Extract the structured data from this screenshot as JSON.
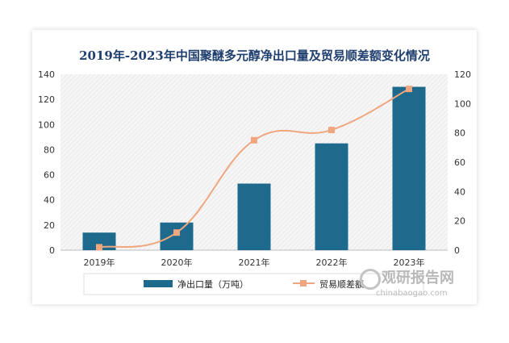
{
  "chart_data": {
    "type": "bar",
    "title": "2019年-2023年中国聚醚多元醇净出口量及贸易顺差额变化情况",
    "categories": [
      "2019年",
      "2020年",
      "2021年",
      "2022年",
      "2023年"
    ],
    "series": [
      {
        "name": "净出口量（万吨）",
        "type": "bar",
        "axis": "left",
        "values": [
          14,
          22,
          53,
          85,
          130
        ]
      },
      {
        "name": "贸易顺差额",
        "type": "line",
        "axis": "right",
        "values": [
          2,
          12,
          75,
          82,
          110
        ]
      }
    ],
    "ylim_left": [
      0,
      140
    ],
    "ylim_right": [
      0,
      120
    ],
    "yticks_left": [
      0,
      20,
      40,
      60,
      80,
      100,
      120,
      140
    ],
    "yticks_right": [
      0,
      20,
      40,
      60,
      80,
      100,
      120
    ],
    "legend_position": "bottom",
    "colors": {
      "bar": "#1d6a8c",
      "line": "#f0a77f",
      "title": "#1f3f6e"
    }
  },
  "watermark": {
    "main": "观研报告网",
    "sub": "chinabaogao.com"
  }
}
